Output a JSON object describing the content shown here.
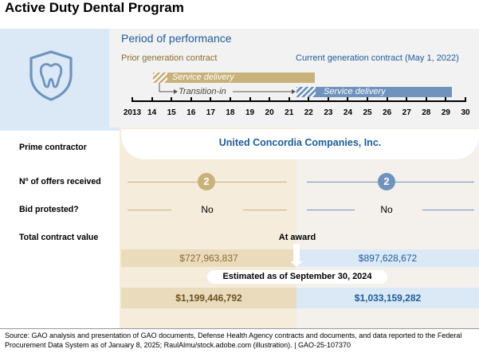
{
  "title": "Active Duty Dental Program",
  "period": {
    "heading": "Period of performance",
    "prior_label": "Prior generation contract",
    "current_label": "Current generation contract (May 1, 2022)",
    "prior_bar_label": "Service delivery",
    "current_bar_label": "Service delivery",
    "transition_label": "Transition-in",
    "axis_years": [
      "2013",
      "14",
      "15",
      "16",
      "17",
      "18",
      "19",
      "20",
      "21",
      "22",
      "23",
      "24",
      "25",
      "26",
      "27",
      "28",
      "29",
      "30"
    ]
  },
  "rows": {
    "prime_label": "Prime contractor",
    "prime_value": "United Concordia Companies, Inc.",
    "offers_label": "Nº of offers received",
    "offers_prior": "2",
    "offers_current": "2",
    "protest_label": "Bid protested?",
    "protest_prior": "No",
    "protest_current": "No",
    "value_label": "Total contract value",
    "at_award_label": "At award",
    "award_prior": "$727,963,837",
    "award_current": "$897,628,672",
    "estimated_label": "Estimated as of September 30, 2024",
    "estimated_prior": "$1,199,446,792",
    "estimated_current": "$1,033,159,282"
  },
  "source": "Source: GAO analysis and presentation of GAO documents, Defense Health Agency contracts and documents, and data reported to the Federal Procurement Data System as of January 8, 2025; RaulAlmu/stock.adobe.com (illustration).  |  GAO-25-107370",
  "colors": {
    "prior": "#c8b27a",
    "current": "#6f93bd",
    "heading_blue": "#1f5c99",
    "prior_text": "#8a6d2e",
    "light_blue_bg": "#dbe9f6",
    "light_tan_bg": "#f5ecdc"
  }
}
